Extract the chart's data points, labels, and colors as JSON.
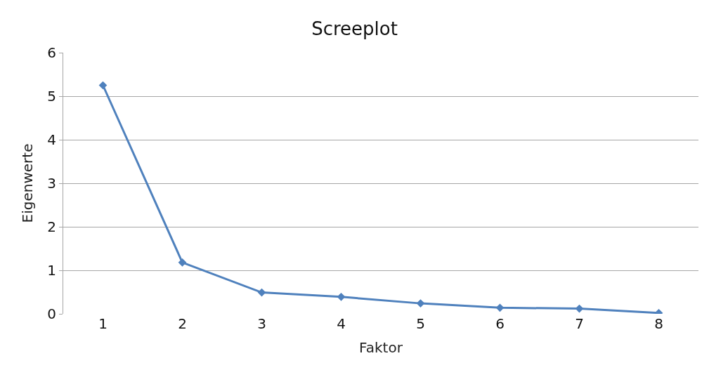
{
  "chart_data": {
    "type": "line",
    "title": "Screeplot",
    "xlabel": "Faktor",
    "ylabel": "Eigenwerte",
    "categories": [
      "1",
      "2",
      "3",
      "4",
      "5",
      "6",
      "7",
      "8"
    ],
    "series": [
      {
        "color": "#4f81bd",
        "values": [
          5.25,
          1.18,
          0.49,
          0.39,
          0.24,
          0.14,
          0.12,
          0.02
        ]
      }
    ],
    "ylim": [
      0,
      6
    ],
    "yticks": [
      0,
      1,
      2,
      3,
      4,
      5,
      6
    ],
    "grid": "y",
    "legend": false,
    "marker": "diamond",
    "line_style": "solid"
  }
}
